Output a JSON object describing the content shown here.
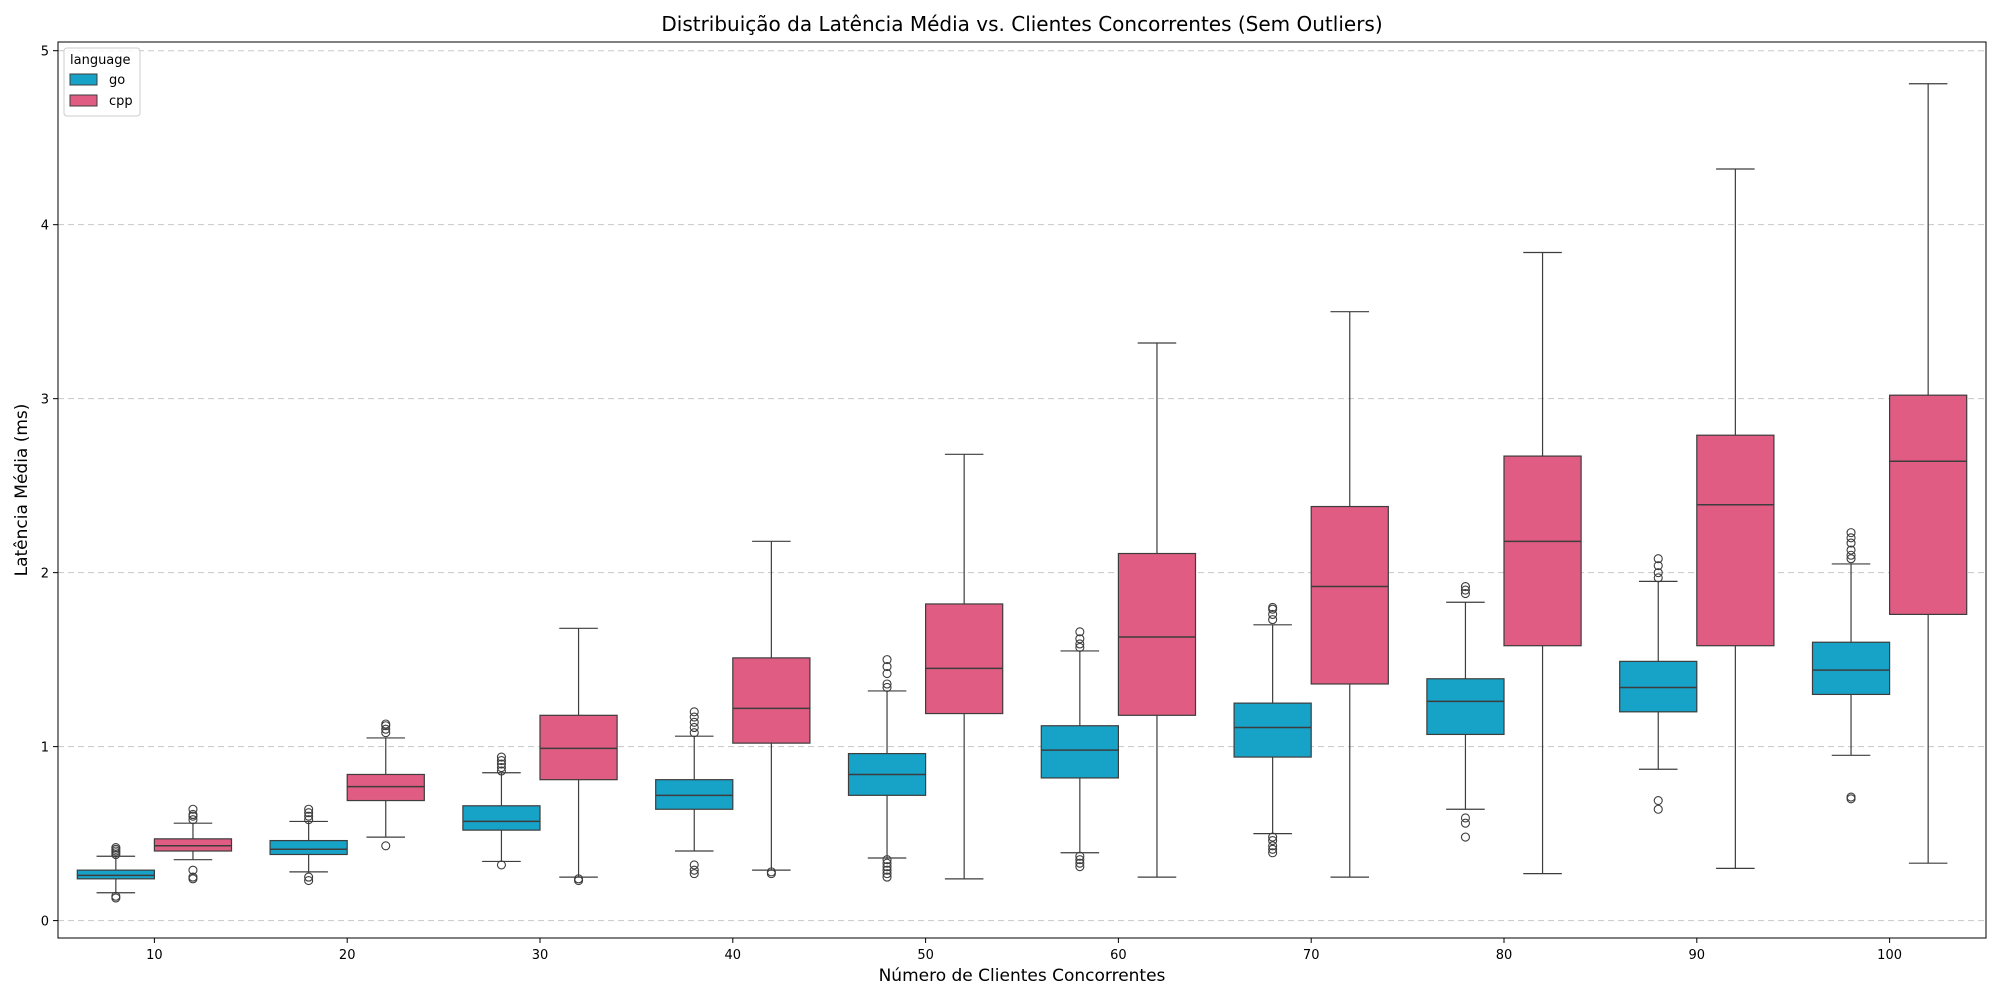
{
  "chart_data": {
    "type": "box",
    "title": "Distribuição da Latência Média vs. Clientes Concorrentes (Sem Outliers)",
    "xlabel": "Número de Clientes Concorrentes",
    "ylabel": "Latência Média (ms)",
    "categories": [
      "10",
      "20",
      "30",
      "40",
      "50",
      "60",
      "70",
      "80",
      "90",
      "100"
    ],
    "ylim": [
      -0.1,
      5.05
    ],
    "yticks": [
      0,
      1,
      2,
      3,
      4,
      5
    ],
    "grid": "y-dashed",
    "legend": {
      "title": "language",
      "position": "top-left"
    },
    "series": [
      {
        "name": "go",
        "color": "#17a2c8",
        "boxes": [
          {
            "whisker_low": 0.16,
            "q1": 0.24,
            "median": 0.26,
            "q3": 0.29,
            "whisker_high": 0.37,
            "outliers": [
              0.13,
              0.14,
              0.38,
              0.39,
              0.4,
              0.41,
              0.42
            ]
          },
          {
            "whisker_low": 0.28,
            "q1": 0.38,
            "median": 0.41,
            "q3": 0.46,
            "whisker_high": 0.57,
            "outliers": [
              0.23,
              0.25,
              0.58,
              0.6,
              0.62,
              0.64
            ]
          },
          {
            "whisker_low": 0.34,
            "q1": 0.52,
            "median": 0.57,
            "q3": 0.66,
            "whisker_high": 0.85,
            "outliers": [
              0.32,
              0.86,
              0.88,
              0.9,
              0.92,
              0.94
            ]
          },
          {
            "whisker_low": 0.4,
            "q1": 0.64,
            "median": 0.72,
            "q3": 0.81,
            "whisker_high": 1.06,
            "outliers": [
              0.27,
              0.29,
              0.32,
              1.08,
              1.11,
              1.14,
              1.17,
              1.2
            ]
          },
          {
            "whisker_low": 0.36,
            "q1": 0.72,
            "median": 0.84,
            "q3": 0.96,
            "whisker_high": 1.32,
            "outliers": [
              0.25,
              0.27,
              0.29,
              0.31,
              0.33,
              0.35,
              1.34,
              1.36,
              1.42,
              1.46,
              1.5
            ]
          },
          {
            "whisker_low": 0.39,
            "q1": 0.82,
            "median": 0.98,
            "q3": 1.12,
            "whisker_high": 1.55,
            "outliers": [
              0.31,
              0.33,
              0.35,
              0.37,
              1.57,
              1.59,
              1.62,
              1.66
            ]
          },
          {
            "whisker_low": 0.5,
            "q1": 0.94,
            "median": 1.11,
            "q3": 1.25,
            "whisker_high": 1.7,
            "outliers": [
              0.39,
              0.41,
              0.43,
              0.46,
              0.48,
              1.73,
              1.76,
              1.79,
              1.8
            ]
          },
          {
            "whisker_low": 0.64,
            "q1": 1.07,
            "median": 1.26,
            "q3": 1.39,
            "whisker_high": 1.83,
            "outliers": [
              0.48,
              0.56,
              0.59,
              1.88,
              1.9,
              1.92
            ]
          },
          {
            "whisker_low": 0.87,
            "q1": 1.2,
            "median": 1.34,
            "q3": 1.49,
            "whisker_high": 1.95,
            "outliers": [
              0.64,
              0.69,
              1.97,
              2.0,
              2.04,
              2.08
            ]
          },
          {
            "whisker_low": 0.95,
            "q1": 1.3,
            "median": 1.44,
            "q3": 1.6,
            "whisker_high": 2.05,
            "outliers": [
              0.7,
              0.71,
              2.08,
              2.1,
              2.13,
              2.17,
              2.2,
              2.23
            ]
          }
        ]
      },
      {
        "name": "cpp",
        "color": "#e05c82",
        "boxes": [
          {
            "whisker_low": 0.35,
            "q1": 0.4,
            "median": 0.43,
            "q3": 0.47,
            "whisker_high": 0.56,
            "outliers": [
              0.24,
              0.25,
              0.29,
              0.58,
              0.6,
              0.61,
              0.64
            ]
          },
          {
            "whisker_low": 0.48,
            "q1": 0.69,
            "median": 0.77,
            "q3": 0.84,
            "whisker_high": 1.05,
            "outliers": [
              0.43,
              1.08,
              1.1,
              1.12,
              1.13
            ]
          },
          {
            "whisker_low": 0.25,
            "q1": 0.81,
            "median": 0.99,
            "q3": 1.18,
            "whisker_high": 1.68,
            "outliers": [
              0.23,
              0.24
            ]
          },
          {
            "whisker_low": 0.29,
            "q1": 1.02,
            "median": 1.22,
            "q3": 1.51,
            "whisker_high": 2.18,
            "outliers": [
              0.27,
              0.28
            ]
          },
          {
            "whisker_low": 0.24,
            "q1": 1.19,
            "median": 1.45,
            "q3": 1.82,
            "whisker_high": 2.68,
            "outliers": []
          },
          {
            "whisker_low": 0.25,
            "q1": 1.18,
            "median": 1.63,
            "q3": 2.11,
            "whisker_high": 3.32,
            "outliers": []
          },
          {
            "whisker_low": 0.25,
            "q1": 1.36,
            "median": 1.92,
            "q3": 2.38,
            "whisker_high": 3.5,
            "outliers": []
          },
          {
            "whisker_low": 0.27,
            "q1": 1.58,
            "median": 2.18,
            "q3": 2.67,
            "whisker_high": 3.84,
            "outliers": []
          },
          {
            "whisker_low": 0.3,
            "q1": 1.58,
            "median": 2.39,
            "q3": 2.79,
            "whisker_high": 4.32,
            "outliers": []
          },
          {
            "whisker_low": 0.33,
            "q1": 1.76,
            "median": 2.64,
            "q3": 3.02,
            "whisker_high": 4.81,
            "outliers": []
          }
        ]
      }
    ]
  }
}
